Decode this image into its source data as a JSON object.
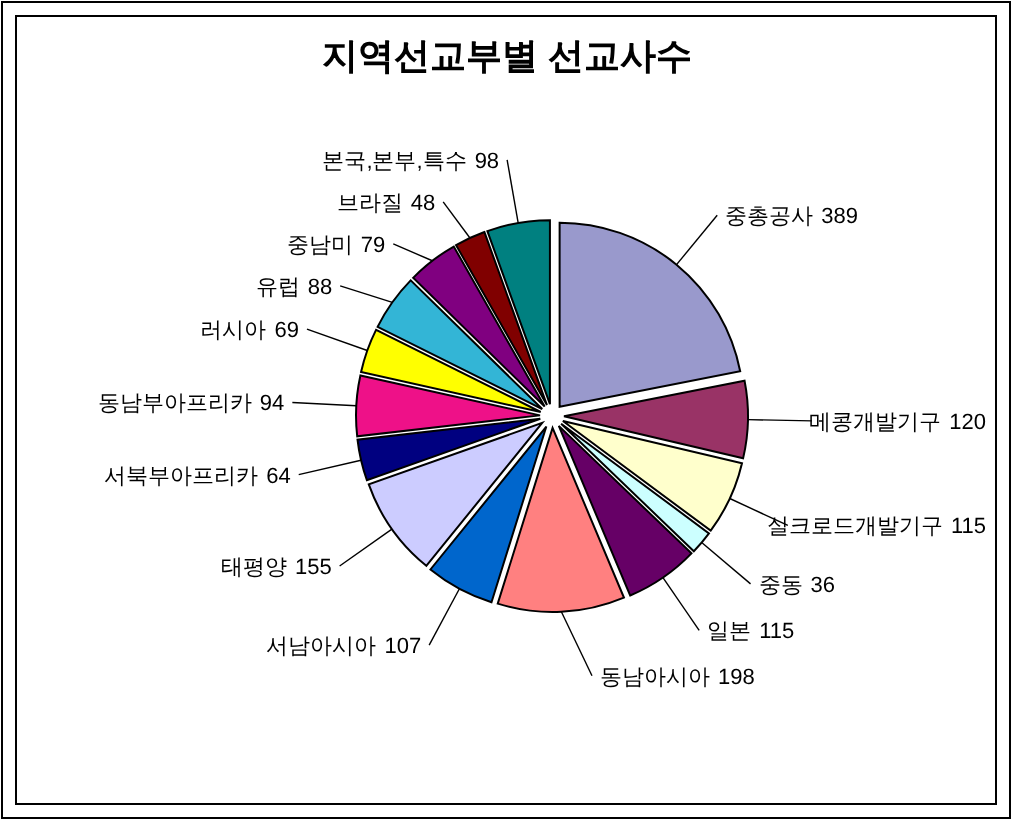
{
  "chart_data": {
    "type": "pie",
    "title": "지역선교부별 선교사수",
    "data_labels": true,
    "categories": [
      "중총공사",
      "메콩개발기구",
      "실크로드개발기구",
      "중동",
      "일본",
      "동남아시아",
      "서남아시아",
      "태평양",
      "서북부아프리카",
      "동남부아프리카",
      "러시아",
      "유럽",
      "중남미",
      "브라질",
      "본국,본부,특수"
    ],
    "values": [
      389,
      120,
      115,
      36,
      115,
      198,
      107,
      155,
      64,
      94,
      69,
      88,
      79,
      48,
      98
    ],
    "colors": [
      "#9999cc",
      "#993366",
      "#ffffcc",
      "#ccffff",
      "#660066",
      "#ff8080",
      "#0066cc",
      "#ccccff",
      "#000080",
      "#ee1188",
      "#ffff00",
      "#33b5d6",
      "#800080",
      "#800000",
      "#008080"
    ]
  }
}
